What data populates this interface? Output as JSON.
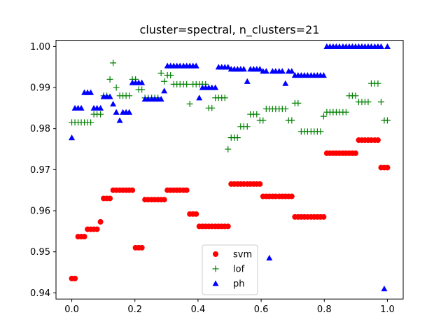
{
  "chart_data": {
    "type": "scatter",
    "title": "cluster=spectral, n_clusters=21",
    "xlabel": "",
    "ylabel": "",
    "xlim": [
      -0.05,
      1.05
    ],
    "ylim": [
      0.9385,
      1.0015
    ],
    "xticks": [
      0.0,
      0.2,
      0.4,
      0.6,
      0.8,
      1.0
    ],
    "xtick_labels": [
      "0.0",
      "0.2",
      "0.4",
      "0.6",
      "0.8",
      "1.0"
    ],
    "yticks": [
      0.94,
      0.95,
      0.96,
      0.97,
      0.98,
      0.99,
      1.0
    ],
    "ytick_labels": [
      "0.94",
      "0.95",
      "0.96",
      "0.97",
      "0.98",
      "0.99",
      "1.00"
    ],
    "grid": false,
    "legend_position": "bottom-center",
    "series": [
      {
        "name": "svm",
        "color": "#ff0000",
        "marker": "circle",
        "points": [
          [
            0.0,
            0.9435
          ],
          [
            0.01,
            0.9435
          ],
          [
            0.02,
            0.9537
          ],
          [
            0.03,
            0.9537
          ],
          [
            0.04,
            0.9537
          ],
          [
            0.05,
            0.9555
          ],
          [
            0.06,
            0.9555
          ],
          [
            0.07,
            0.9555
          ],
          [
            0.08,
            0.9555
          ],
          [
            0.091,
            0.9573
          ],
          [
            0.101,
            0.963
          ],
          [
            0.111,
            0.963
          ],
          [
            0.121,
            0.963
          ],
          [
            0.131,
            0.965
          ],
          [
            0.141,
            0.965
          ],
          [
            0.152,
            0.965
          ],
          [
            0.162,
            0.965
          ],
          [
            0.172,
            0.965
          ],
          [
            0.182,
            0.965
          ],
          [
            0.192,
            0.965
          ],
          [
            0.202,
            0.951
          ],
          [
            0.212,
            0.951
          ],
          [
            0.222,
            0.951
          ],
          [
            0.232,
            0.9627
          ],
          [
            0.242,
            0.9627
          ],
          [
            0.253,
            0.9627
          ],
          [
            0.263,
            0.9627
          ],
          [
            0.273,
            0.9627
          ],
          [
            0.283,
            0.9627
          ],
          [
            0.293,
            0.9627
          ],
          [
            0.303,
            0.965
          ],
          [
            0.313,
            0.965
          ],
          [
            0.323,
            0.965
          ],
          [
            0.333,
            0.965
          ],
          [
            0.343,
            0.965
          ],
          [
            0.354,
            0.965
          ],
          [
            0.364,
            0.965
          ],
          [
            0.374,
            0.9592
          ],
          [
            0.384,
            0.9592
          ],
          [
            0.394,
            0.9592
          ],
          [
            0.404,
            0.9562
          ],
          [
            0.414,
            0.9562
          ],
          [
            0.424,
            0.9562
          ],
          [
            0.434,
            0.9562
          ],
          [
            0.444,
            0.9562
          ],
          [
            0.455,
            0.9562
          ],
          [
            0.465,
            0.9562
          ],
          [
            0.475,
            0.9562
          ],
          [
            0.485,
            0.9562
          ],
          [
            0.495,
            0.9562
          ],
          [
            0.505,
            0.9665
          ],
          [
            0.515,
            0.9665
          ],
          [
            0.525,
            0.9665
          ],
          [
            0.535,
            0.9665
          ],
          [
            0.545,
            0.9665
          ],
          [
            0.556,
            0.9665
          ],
          [
            0.566,
            0.9665
          ],
          [
            0.576,
            0.9665
          ],
          [
            0.586,
            0.9665
          ],
          [
            0.596,
            0.9665
          ],
          [
            0.606,
            0.9635
          ],
          [
            0.616,
            0.9635
          ],
          [
            0.626,
            0.9635
          ],
          [
            0.636,
            0.9635
          ],
          [
            0.646,
            0.9635
          ],
          [
            0.657,
            0.9635
          ],
          [
            0.667,
            0.9635
          ],
          [
            0.677,
            0.9635
          ],
          [
            0.687,
            0.9635
          ],
          [
            0.697,
            0.9635
          ],
          [
            0.707,
            0.9585
          ],
          [
            0.717,
            0.9585
          ],
          [
            0.727,
            0.9585
          ],
          [
            0.737,
            0.9585
          ],
          [
            0.747,
            0.9585
          ],
          [
            0.758,
            0.9585
          ],
          [
            0.768,
            0.9585
          ],
          [
            0.778,
            0.9585
          ],
          [
            0.788,
            0.9585
          ],
          [
            0.798,
            0.9585
          ],
          [
            0.808,
            0.974
          ],
          [
            0.818,
            0.974
          ],
          [
            0.828,
            0.974
          ],
          [
            0.838,
            0.974
          ],
          [
            0.848,
            0.974
          ],
          [
            0.859,
            0.974
          ],
          [
            0.869,
            0.974
          ],
          [
            0.879,
            0.974
          ],
          [
            0.889,
            0.974
          ],
          [
            0.899,
            0.974
          ],
          [
            0.909,
            0.9772
          ],
          [
            0.919,
            0.9772
          ],
          [
            0.929,
            0.9772
          ],
          [
            0.939,
            0.9772
          ],
          [
            0.949,
            0.9772
          ],
          [
            0.96,
            0.9772
          ],
          [
            0.97,
            0.9772
          ],
          [
            0.98,
            0.9705
          ],
          [
            0.99,
            0.9705
          ],
          [
            1.0,
            0.9705
          ]
        ]
      },
      {
        "name": "lof",
        "color": "#008000",
        "marker": "plus",
        "points": [
          [
            0.0,
            0.9815
          ],
          [
            0.01,
            0.9815
          ],
          [
            0.02,
            0.9815
          ],
          [
            0.03,
            0.9815
          ],
          [
            0.04,
            0.9815
          ],
          [
            0.05,
            0.9815
          ],
          [
            0.06,
            0.9815
          ],
          [
            0.07,
            0.9835
          ],
          [
            0.08,
            0.9835
          ],
          [
            0.091,
            0.9835
          ],
          [
            0.101,
            0.988
          ],
          [
            0.111,
            0.988
          ],
          [
            0.121,
            0.992
          ],
          [
            0.131,
            0.996
          ],
          [
            0.141,
            0.99
          ],
          [
            0.152,
            0.988
          ],
          [
            0.162,
            0.988
          ],
          [
            0.172,
            0.988
          ],
          [
            0.182,
            0.988
          ],
          [
            0.192,
            0.992
          ],
          [
            0.202,
            0.992
          ],
          [
            0.212,
            0.9895
          ],
          [
            0.222,
            0.9895
          ],
          [
            0.232,
            0.9875
          ],
          [
            0.242,
            0.9875
          ],
          [
            0.253,
            0.9875
          ],
          [
            0.263,
            0.9875
          ],
          [
            0.273,
            0.9875
          ],
          [
            0.283,
            0.9935
          ],
          [
            0.293,
            0.9915
          ],
          [
            0.303,
            0.993
          ],
          [
            0.313,
            0.993
          ],
          [
            0.323,
            0.9908
          ],
          [
            0.333,
            0.9908
          ],
          [
            0.343,
            0.9908
          ],
          [
            0.354,
            0.9908
          ],
          [
            0.364,
            0.9908
          ],
          [
            0.374,
            0.986
          ],
          [
            0.384,
            0.9908
          ],
          [
            0.394,
            0.9908
          ],
          [
            0.404,
            0.9908
          ],
          [
            0.414,
            0.9908
          ],
          [
            0.424,
            0.9908
          ],
          [
            0.434,
            0.985
          ],
          [
            0.444,
            0.985
          ],
          [
            0.455,
            0.9875
          ],
          [
            0.465,
            0.9875
          ],
          [
            0.475,
            0.9875
          ],
          [
            0.485,
            0.9875
          ],
          [
            0.495,
            0.975
          ],
          [
            0.505,
            0.9778
          ],
          [
            0.515,
            0.9778
          ],
          [
            0.525,
            0.9778
          ],
          [
            0.535,
            0.9805
          ],
          [
            0.545,
            0.9805
          ],
          [
            0.556,
            0.9805
          ],
          [
            0.566,
            0.9835
          ],
          [
            0.576,
            0.9835
          ],
          [
            0.586,
            0.9835
          ],
          [
            0.596,
            0.982
          ],
          [
            0.606,
            0.982
          ],
          [
            0.616,
            0.9848
          ],
          [
            0.626,
            0.9848
          ],
          [
            0.636,
            0.9848
          ],
          [
            0.646,
            0.9848
          ],
          [
            0.657,
            0.9848
          ],
          [
            0.667,
            0.9848
          ],
          [
            0.677,
            0.9848
          ],
          [
            0.687,
            0.982
          ],
          [
            0.697,
            0.982
          ],
          [
            0.707,
            0.9862
          ],
          [
            0.717,
            0.9862
          ],
          [
            0.727,
            0.9793
          ],
          [
            0.737,
            0.9793
          ],
          [
            0.747,
            0.9793
          ],
          [
            0.758,
            0.9793
          ],
          [
            0.768,
            0.9793
          ],
          [
            0.778,
            0.9793
          ],
          [
            0.788,
            0.9793
          ],
          [
            0.798,
            0.983
          ],
          [
            0.808,
            0.984
          ],
          [
            0.818,
            0.984
          ],
          [
            0.828,
            0.984
          ],
          [
            0.838,
            0.984
          ],
          [
            0.848,
            0.984
          ],
          [
            0.859,
            0.984
          ],
          [
            0.869,
            0.984
          ],
          [
            0.879,
            0.988
          ],
          [
            0.889,
            0.988
          ],
          [
            0.899,
            0.988
          ],
          [
            0.909,
            0.9865
          ],
          [
            0.919,
            0.9865
          ],
          [
            0.929,
            0.9865
          ],
          [
            0.939,
            0.9865
          ],
          [
            0.949,
            0.991
          ],
          [
            0.96,
            0.991
          ],
          [
            0.97,
            0.991
          ],
          [
            0.98,
            0.9865
          ],
          [
            0.99,
            0.982
          ],
          [
            1.0,
            0.982
          ]
        ]
      },
      {
        "name": "ph",
        "color": "#0000ff",
        "marker": "triangle",
        "points": [
          [
            0.0,
            0.9778
          ],
          [
            0.01,
            0.985
          ],
          [
            0.02,
            0.985
          ],
          [
            0.03,
            0.985
          ],
          [
            0.04,
            0.9888
          ],
          [
            0.05,
            0.9888
          ],
          [
            0.06,
            0.9888
          ],
          [
            0.07,
            0.985
          ],
          [
            0.08,
            0.985
          ],
          [
            0.091,
            0.985
          ],
          [
            0.101,
            0.9878
          ],
          [
            0.111,
            0.9878
          ],
          [
            0.121,
            0.9878
          ],
          [
            0.131,
            0.986
          ],
          [
            0.141,
            0.984
          ],
          [
            0.152,
            0.982
          ],
          [
            0.162,
            0.984
          ],
          [
            0.172,
            0.984
          ],
          [
            0.182,
            0.984
          ],
          [
            0.192,
            0.9912
          ],
          [
            0.202,
            0.9912
          ],
          [
            0.212,
            0.9912
          ],
          [
            0.222,
            0.9912
          ],
          [
            0.232,
            0.9872
          ],
          [
            0.242,
            0.9872
          ],
          [
            0.253,
            0.9872
          ],
          [
            0.263,
            0.9872
          ],
          [
            0.273,
            0.9872
          ],
          [
            0.283,
            0.9872
          ],
          [
            0.293,
            0.9892
          ],
          [
            0.303,
            0.9953
          ],
          [
            0.313,
            0.9953
          ],
          [
            0.323,
            0.9953
          ],
          [
            0.333,
            0.9953
          ],
          [
            0.343,
            0.9953
          ],
          [
            0.354,
            0.9953
          ],
          [
            0.364,
            0.9953
          ],
          [
            0.374,
            0.9953
          ],
          [
            0.384,
            0.9953
          ],
          [
            0.394,
            0.9953
          ],
          [
            0.404,
            0.9875
          ],
          [
            0.414,
            0.99
          ],
          [
            0.424,
            0.99
          ],
          [
            0.434,
            0.99
          ],
          [
            0.444,
            0.99
          ],
          [
            0.455,
            0.99
          ],
          [
            0.465,
            0.995
          ],
          [
            0.475,
            0.995
          ],
          [
            0.485,
            0.995
          ],
          [
            0.495,
            0.995
          ],
          [
            0.505,
            0.9945
          ],
          [
            0.515,
            0.9945
          ],
          [
            0.525,
            0.9945
          ],
          [
            0.535,
            0.9945
          ],
          [
            0.545,
            0.9945
          ],
          [
            0.556,
            0.9915
          ],
          [
            0.566,
            0.9945
          ],
          [
            0.576,
            0.9945
          ],
          [
            0.586,
            0.9945
          ],
          [
            0.596,
            0.9945
          ],
          [
            0.606,
            0.994
          ],
          [
            0.616,
            0.994
          ],
          [
            0.626,
            0.9485
          ],
          [
            0.636,
            0.994
          ],
          [
            0.646,
            0.994
          ],
          [
            0.657,
            0.994
          ],
          [
            0.667,
            0.994
          ],
          [
            0.677,
            0.991
          ],
          [
            0.687,
            0.994
          ],
          [
            0.697,
            0.994
          ],
          [
            0.707,
            0.993
          ],
          [
            0.717,
            0.993
          ],
          [
            0.727,
            0.993
          ],
          [
            0.737,
            0.993
          ],
          [
            0.747,
            0.993
          ],
          [
            0.758,
            0.993
          ],
          [
            0.768,
            0.993
          ],
          [
            0.778,
            0.993
          ],
          [
            0.788,
            0.993
          ],
          [
            0.798,
            0.993
          ],
          [
            0.808,
            1.0
          ],
          [
            0.818,
            1.0
          ],
          [
            0.828,
            1.0
          ],
          [
            0.838,
            1.0
          ],
          [
            0.848,
            1.0
          ],
          [
            0.859,
            1.0
          ],
          [
            0.869,
            1.0
          ],
          [
            0.879,
            1.0
          ],
          [
            0.889,
            1.0
          ],
          [
            0.899,
            1.0
          ],
          [
            0.909,
            1.0
          ],
          [
            0.919,
            1.0
          ],
          [
            0.929,
            1.0
          ],
          [
            0.939,
            1.0
          ],
          [
            0.949,
            1.0
          ],
          [
            0.96,
            1.0
          ],
          [
            0.97,
            1.0
          ],
          [
            0.98,
            1.0
          ],
          [
            0.99,
            0.941
          ],
          [
            1.0,
            1.0
          ]
        ]
      }
    ]
  }
}
